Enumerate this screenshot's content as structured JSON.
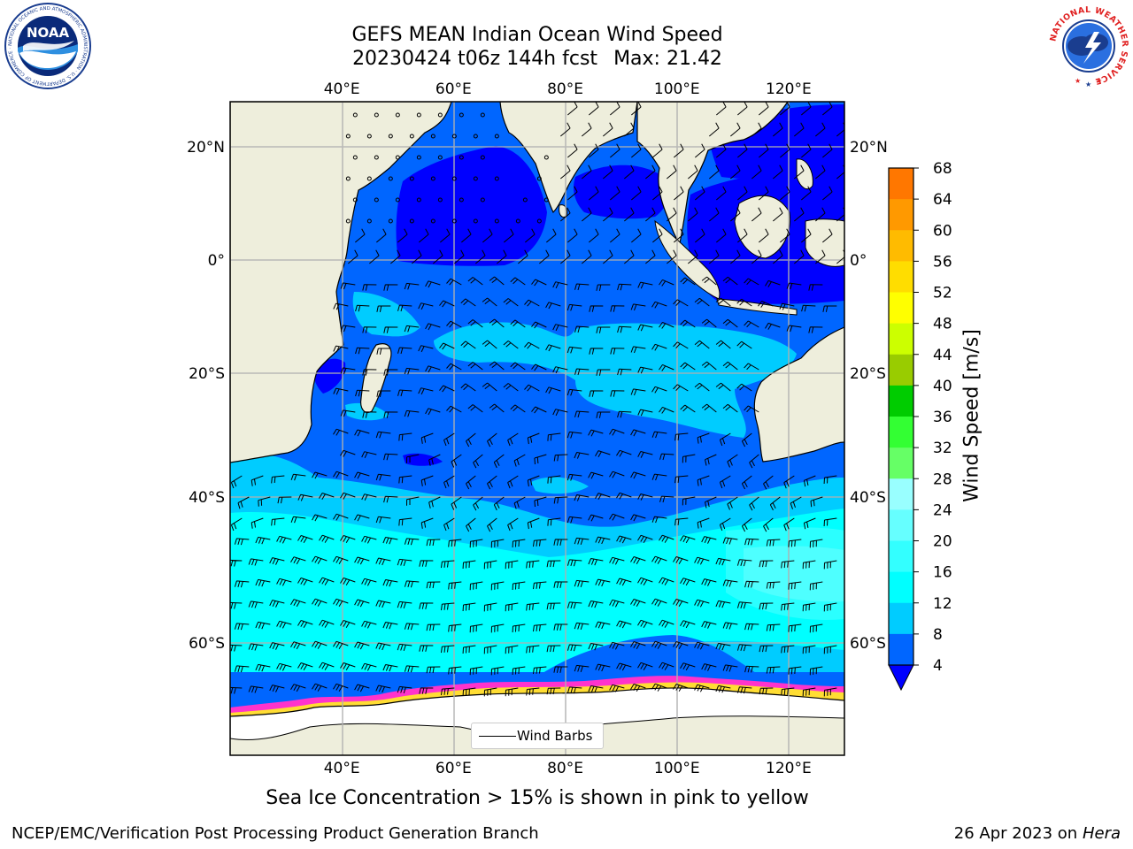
{
  "title": {
    "line1": "GEFS MEAN Indian Ocean Wind Speed",
    "line2_run": "20230424 t06z 144h fcst",
    "line2_max": "Max: 21.42"
  },
  "axes": {
    "lon_ticks": [
      "40°E",
      "60°E",
      "80°E",
      "100°E",
      "120°E"
    ],
    "lat_ticks": [
      "20°N",
      "0°",
      "20°S",
      "40°S",
      "60°S"
    ],
    "lon_values": [
      40,
      60,
      80,
      100,
      120
    ],
    "lat_values": [
      20,
      0,
      -20,
      -40,
      -60
    ],
    "lon_range": [
      20,
      130
    ],
    "lat_range": [
      28,
      -72
    ],
    "grid": true
  },
  "colorbar": {
    "label": "Wind Speed [m/s]",
    "ticks": [
      "4",
      "8",
      "12",
      "16",
      "20",
      "24",
      "28",
      "32",
      "36",
      "40",
      "44",
      "48",
      "52",
      "56",
      "60",
      "64",
      "68"
    ],
    "extend": "min",
    "colors": [
      "#0066ff",
      "#00ccff",
      "#00ffff",
      "#33ffff",
      "#66ffff",
      "#99ffff",
      "#66ff66",
      "#33ff33",
      "#00cc00",
      "#99cc00",
      "#ccff00",
      "#ffff00",
      "#ffdd00",
      "#ffbb00",
      "#ff9900",
      "#ff7700",
      "#ff4400",
      "#ff2200",
      "#ff0000"
    ],
    "under_color": "#0000ff"
  },
  "field_colors": {
    "land": "#eeeedc",
    "calm": "#0000ff",
    "wind_4_8": "#0066ff",
    "wind_8_12": "#00ccff",
    "wind_12_16": "#00ffff",
    "wind_16_20": "#33ffff",
    "ice_pink": "#ff33cc",
    "ice_yellow": "#ffdd33",
    "antarctica": "#ffffff"
  },
  "legend": {
    "label": "Wind Barbs"
  },
  "caption": "Sea Ice Concentration > 15% is shown in pink to yellow",
  "footer": {
    "left": "NCEP/EMC/Verification Post Processing Product Generation Branch",
    "date": "26 Apr 2023 on ",
    "machine": "Hera"
  },
  "logos": {
    "noaa_text": "NOAA",
    "noaa_ring": "NATIONAL OCEANIC AND ATMOSPHERIC ADMINISTRATION · U.S. DEPARTMENT OF COMMERCE ·",
    "nws_ring": "NATIONAL WEATHER SERVICE"
  }
}
